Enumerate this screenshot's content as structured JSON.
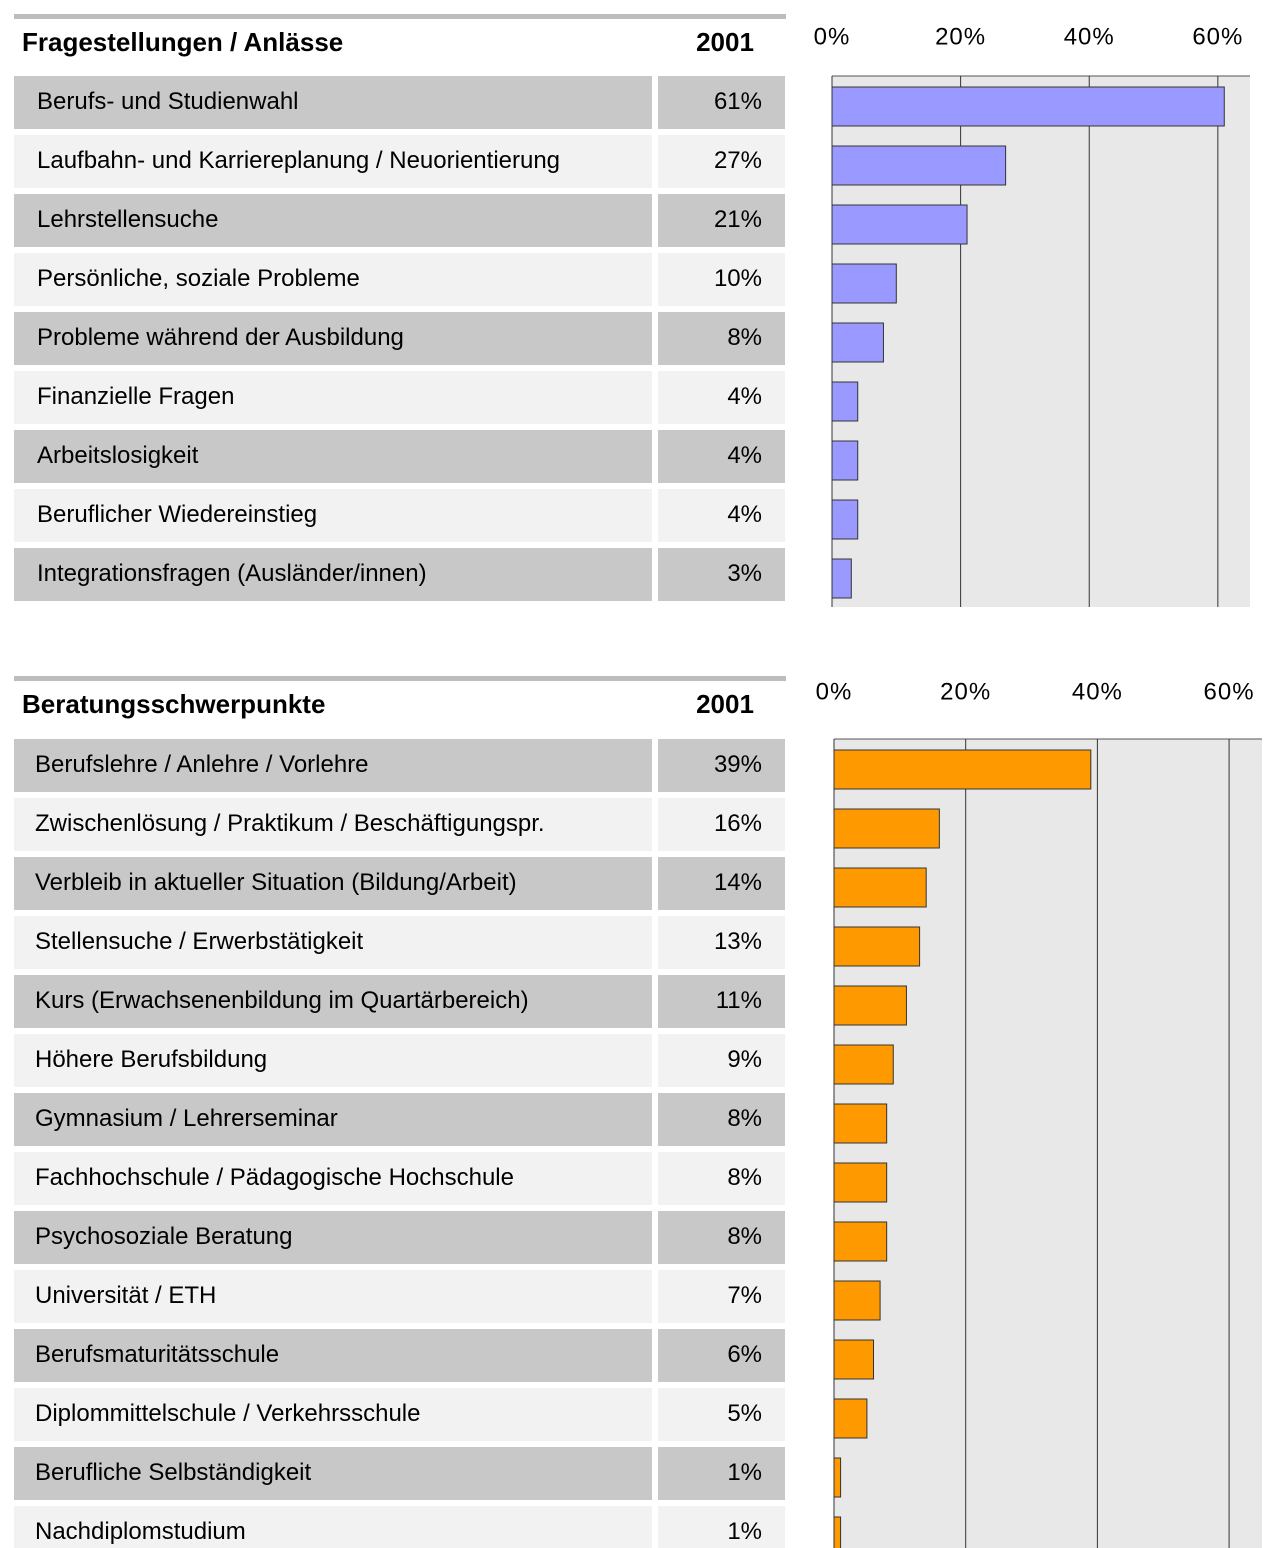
{
  "chart_data": [
    {
      "type": "bar",
      "orientation": "horizontal",
      "title": "Fragestellungen / Anlässe",
      "column_header": "2001",
      "categories": [
        "Berufs- und Studienwahl",
        "Laufbahn- und Karriereplanung / Neuorientierung",
        "Lehrstellensuche",
        "Persönliche, soziale Probleme",
        "Probleme während der Ausbildung",
        "Finanzielle Fragen",
        "Arbeitslosigkeit",
        "Beruflicher Wiedereinstieg",
        "Integrationsfragen (Ausländer/innen)"
      ],
      "values": [
        61,
        27,
        21,
        10,
        8,
        4,
        4,
        4,
        3
      ],
      "value_labels": [
        "61%",
        "27%",
        "21%",
        "10%",
        "8%",
        "4%",
        "4%",
        "4%",
        "3%"
      ],
      "color": "#9999ff",
      "xlim": [
        0,
        65
      ],
      "xticks": [
        {
          "value": 0,
          "label": "0%"
        },
        {
          "value": 20,
          "label": "20%"
        },
        {
          "value": 40,
          "label": "40%"
        },
        {
          "value": 60,
          "label": "60%"
        }
      ],
      "grid": true
    },
    {
      "type": "bar",
      "orientation": "horizontal",
      "title": "Beratungsschwerpunkte",
      "column_header": "2001",
      "categories": [
        "Berufslehre / Anlehre / Vorlehre",
        "Zwischenlösung / Praktikum / Beschäftigungspr.",
        "Verbleib in aktueller Situation (Bildung/Arbeit)",
        "Stellensuche / Erwerbstätigkeit",
        "Kurs (Erwachsenenbildung im Quartärbereich)",
        "Höhere Berufsbildung",
        "Gymnasium / Lehrerseminar",
        "Fachhochschule / Pädagogische Hochschule",
        "Psychosoziale Beratung",
        "Universität / ETH",
        "Berufsmaturitätsschule",
        "Diplommittelschule / Verkehrsschule",
        "Berufliche Selbständigkeit",
        "Nachdiplomstudium"
      ],
      "values": [
        39,
        16,
        14,
        13,
        11,
        9,
        8,
        8,
        8,
        7,
        6,
        5,
        1,
        1
      ],
      "value_labels": [
        "39%",
        "16%",
        "14%",
        "13%",
        "11%",
        "9%",
        "8%",
        "8%",
        "8%",
        "7%",
        "6%",
        "5%",
        "1%",
        "1%"
      ],
      "color": "#ff9900",
      "xlim": [
        0,
        65
      ],
      "xticks": [
        {
          "value": 0,
          "label": "0%"
        },
        {
          "value": 20,
          "label": "20%"
        },
        {
          "value": 40,
          "label": "40%"
        },
        {
          "value": 60,
          "label": "60%"
        }
      ],
      "grid": true
    }
  ]
}
